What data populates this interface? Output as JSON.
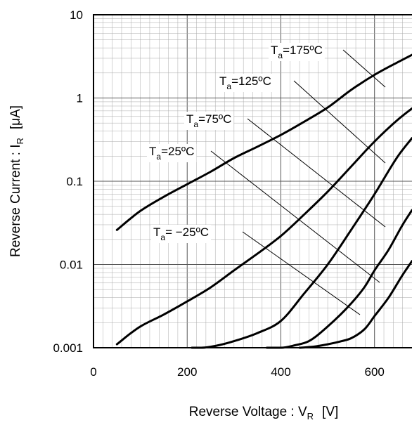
{
  "chart_data": {
    "type": "line",
    "xlabel": {
      "main": "Reverse Voltage : V",
      "sub": "R",
      "unit": "[V]"
    },
    "ylabel": {
      "main": "Reverse Current : I",
      "sub": "R",
      "unit": "[μA]"
    },
    "xlim": [
      0,
      680
    ],
    "ylim": [
      0.001,
      10
    ],
    "yscale": "log",
    "grid": true,
    "x_ticks": [
      {
        "value": 0,
        "label": "0"
      },
      {
        "value": 200,
        "label": "200"
      },
      {
        "value": 400,
        "label": "400"
      },
      {
        "value": 600,
        "label": "600"
      }
    ],
    "y_ticks": [
      {
        "value": 0.001,
        "label": "0.001"
      },
      {
        "value": 0.01,
        "label": "0.01"
      },
      {
        "value": 0.1,
        "label": "0.1"
      },
      {
        "value": 1,
        "label": "1"
      },
      {
        "value": 10,
        "label": "10"
      }
    ],
    "series": [
      {
        "label": {
          "pre": "T",
          "sub": "a",
          "post": "=175ºC"
        },
        "points": [
          [
            50,
            0.026
          ],
          [
            80,
            0.036
          ],
          [
            100,
            0.044
          ],
          [
            150,
            0.065
          ],
          [
            200,
            0.092
          ],
          [
            250,
            0.13
          ],
          [
            300,
            0.19
          ],
          [
            350,
            0.26
          ],
          [
            400,
            0.36
          ],
          [
            450,
            0.52
          ],
          [
            500,
            0.77
          ],
          [
            550,
            1.25
          ],
          [
            600,
            1.9
          ],
          [
            650,
            2.7
          ],
          [
            680,
            3.3
          ]
        ]
      },
      {
        "label": {
          "pre": "T",
          "sub": "a",
          "post": "=125ºC"
        },
        "points": [
          [
            50,
            0.0011
          ],
          [
            80,
            0.0015
          ],
          [
            100,
            0.0018
          ],
          [
            150,
            0.0025
          ],
          [
            200,
            0.0036
          ],
          [
            250,
            0.0053
          ],
          [
            300,
            0.0085
          ],
          [
            350,
            0.0135
          ],
          [
            400,
            0.022
          ],
          [
            450,
            0.04
          ],
          [
            500,
            0.075
          ],
          [
            550,
            0.15
          ],
          [
            600,
            0.3
          ],
          [
            650,
            0.55
          ],
          [
            680,
            0.75
          ]
        ]
      },
      {
        "label": {
          "pre": "T",
          "sub": "a",
          "post": "=75ºC"
        },
        "points": [
          [
            210,
            0.001
          ],
          [
            230,
            0.001
          ],
          [
            270,
            0.00108
          ],
          [
            300,
            0.0012
          ],
          [
            350,
            0.0015
          ],
          [
            400,
            0.0021
          ],
          [
            450,
            0.0045
          ],
          [
            500,
            0.01
          ],
          [
            550,
            0.026
          ],
          [
            600,
            0.07
          ],
          [
            650,
            0.2
          ],
          [
            680,
            0.33
          ]
        ]
      },
      {
        "label": {
          "pre": "T",
          "sub": "a",
          "post": "=25ºC"
        },
        "points": [
          [
            370,
            0.001
          ],
          [
            400,
            0.001
          ],
          [
            430,
            0.00107
          ],
          [
            460,
            0.0012
          ],
          [
            500,
            0.0018
          ],
          [
            550,
            0.0034
          ],
          [
            580,
            0.0055
          ],
          [
            600,
            0.0085
          ],
          [
            630,
            0.015
          ],
          [
            660,
            0.03
          ],
          [
            680,
            0.045
          ]
        ]
      },
      {
        "label": {
          "pre": "T",
          "sub": "a",
          "post": "= −25ºC"
        },
        "points": [
          [
            440,
            0.001
          ],
          [
            470,
            0.00103
          ],
          [
            500,
            0.0011
          ],
          [
            530,
            0.0012
          ],
          [
            550,
            0.0013
          ],
          [
            580,
            0.0017
          ],
          [
            600,
            0.0024
          ],
          [
            630,
            0.004
          ],
          [
            660,
            0.0075
          ],
          [
            680,
            0.011
          ]
        ]
      }
    ]
  }
}
